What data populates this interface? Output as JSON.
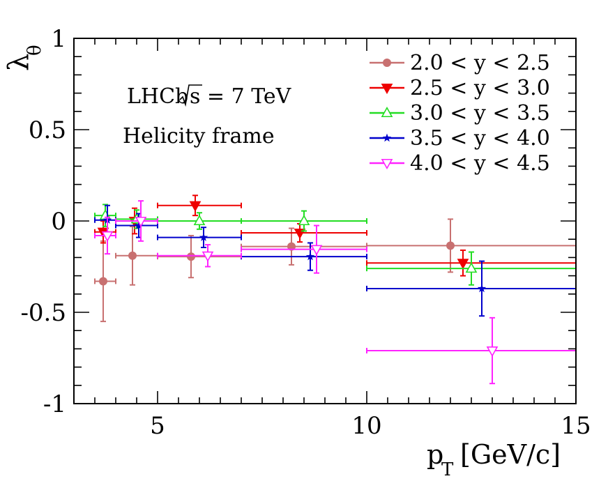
{
  "chart_data": {
    "type": "scatter",
    "title": "",
    "xlabel_main": "p",
    "xlabel_sub": "T",
    "xlabel_unit": "[GeV/c]",
    "ylabel_main": "λ",
    "ylabel_sub": "θ",
    "xlim": [
      3,
      15
    ],
    "ylim": [
      -1,
      1
    ],
    "xticks": [
      {
        "value": 5,
        "label": "5"
      },
      {
        "value": 10,
        "label": "10"
      },
      {
        "value": 15,
        "label": "15"
      }
    ],
    "yticks": [
      {
        "value": -1,
        "label": "-1"
      },
      {
        "value": -0.5,
        "label": "-0.5"
      },
      {
        "value": 0,
        "label": "0"
      },
      {
        "value": 0.5,
        "label": "0.5"
      },
      {
        "value": 1,
        "label": "1"
      }
    ],
    "annotation_experiment": "LHCb",
    "annotation_energy": "s = 7 TeV",
    "annotation_frame": "Helicity frame",
    "series": [
      {
        "name": "2.0 < y < 2.5",
        "color": "#c87070",
        "marker": "circle",
        "points": [
          {
            "x": 3.7,
            "y": -0.33,
            "xlo": 3.5,
            "xhi": 4.0,
            "err": 0.22
          },
          {
            "x": 4.4,
            "y": -0.19,
            "xlo": 4.0,
            "xhi": 5.0,
            "err": 0.16
          },
          {
            "x": 5.8,
            "y": -0.195,
            "xlo": 5.0,
            "xhi": 7.0,
            "err": 0.115
          },
          {
            "x": 8.2,
            "y": -0.14,
            "xlo": 7.0,
            "xhi": 10.0,
            "err": 0.1
          },
          {
            "x": 12.0,
            "y": -0.135,
            "xlo": 10.0,
            "xhi": 15.0,
            "err": 0.145
          }
        ]
      },
      {
        "name": "2.5 < y < 3.0",
        "color": "#ee0000",
        "marker": "triangle-down",
        "points": [
          {
            "x": 3.7,
            "y": -0.06,
            "xlo": 3.5,
            "xhi": 4.0,
            "err": 0.06
          },
          {
            "x": 4.45,
            "y": 0.0,
            "xlo": 4.0,
            "xhi": 5.0,
            "err": 0.07
          },
          {
            "x": 5.9,
            "y": 0.085,
            "xlo": 5.0,
            "xhi": 7.0,
            "err": 0.055
          },
          {
            "x": 8.4,
            "y": -0.065,
            "xlo": 7.0,
            "xhi": 10.0,
            "err": 0.05
          },
          {
            "x": 12.3,
            "y": -0.23,
            "xlo": 10.0,
            "xhi": 15.0,
            "err": 0.07
          }
        ]
      },
      {
        "name": "3.0 < y < 3.5",
        "color": "#22dd22",
        "marker": "triangle-up-open",
        "points": [
          {
            "x": 3.75,
            "y": 0.03,
            "xlo": 3.5,
            "xhi": 4.0,
            "err": 0.06
          },
          {
            "x": 4.5,
            "y": 0.01,
            "xlo": 4.0,
            "xhi": 5.0,
            "err": 0.05
          },
          {
            "x": 6.0,
            "y": 0.0,
            "xlo": 5.0,
            "xhi": 7.0,
            "err": 0.045
          },
          {
            "x": 8.5,
            "y": 0.0,
            "xlo": 7.0,
            "xhi": 10.0,
            "err": 0.055
          },
          {
            "x": 12.5,
            "y": -0.26,
            "xlo": 10.0,
            "xhi": 15.0,
            "err": 0.09
          }
        ]
      },
      {
        "name": "3.5 < y < 4.0",
        "color": "#0000cc",
        "marker": "star",
        "points": [
          {
            "x": 3.8,
            "y": 0.005,
            "xlo": 3.5,
            "xhi": 4.0,
            "err": 0.08
          },
          {
            "x": 4.55,
            "y": -0.025,
            "xlo": 4.0,
            "xhi": 5.0,
            "err": 0.065
          },
          {
            "x": 6.1,
            "y": -0.09,
            "xlo": 5.0,
            "xhi": 7.0,
            "err": 0.055
          },
          {
            "x": 8.65,
            "y": -0.195,
            "xlo": 7.0,
            "xhi": 10.0,
            "err": 0.075
          },
          {
            "x": 12.75,
            "y": -0.37,
            "xlo": 10.0,
            "xhi": 15.0,
            "err": 0.15
          }
        ]
      },
      {
        "name": "4.0 < y < 4.5",
        "color": "#ff22ff",
        "marker": "triangle-down-open",
        "points": [
          {
            "x": 3.8,
            "y": -0.08,
            "xlo": 3.5,
            "xhi": 4.0,
            "err": 0.1
          },
          {
            "x": 4.6,
            "y": 0.0,
            "xlo": 4.0,
            "xhi": 5.0,
            "err": 0.11
          },
          {
            "x": 6.2,
            "y": -0.19,
            "xlo": 5.0,
            "xhi": 7.0,
            "err": 0.06
          },
          {
            "x": 8.8,
            "y": -0.155,
            "xlo": 7.0,
            "xhi": 10.0,
            "err": 0.13
          },
          {
            "x": 13.0,
            "y": -0.71,
            "xlo": 10.0,
            "xhi": 15.0,
            "err": 0.18
          }
        ]
      }
    ]
  }
}
